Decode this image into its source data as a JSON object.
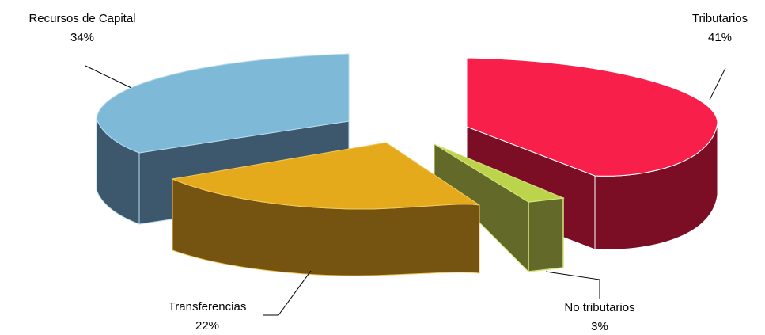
{
  "chart_data": {
    "type": "pie",
    "style": "3d-exploded",
    "slices": [
      {
        "label": "Tributarios",
        "percent_label": "41%",
        "value": 41,
        "color": "#F81F4A",
        "side_color": "#7B0E24"
      },
      {
        "label": "No tributarios",
        "percent_label": "3%",
        "value": 3,
        "color": "#BCD44C",
        "side_color": "#636A29"
      },
      {
        "label": "Transferencias",
        "percent_label": "22%",
        "value": 22,
        "color": "#E4AA1B",
        "side_color": "#755310"
      },
      {
        "label": "Recursos de Capital",
        "percent_label": "34%",
        "value": 34,
        "color": "#7FB9D8",
        "side_color": "#3D576D"
      }
    ]
  }
}
